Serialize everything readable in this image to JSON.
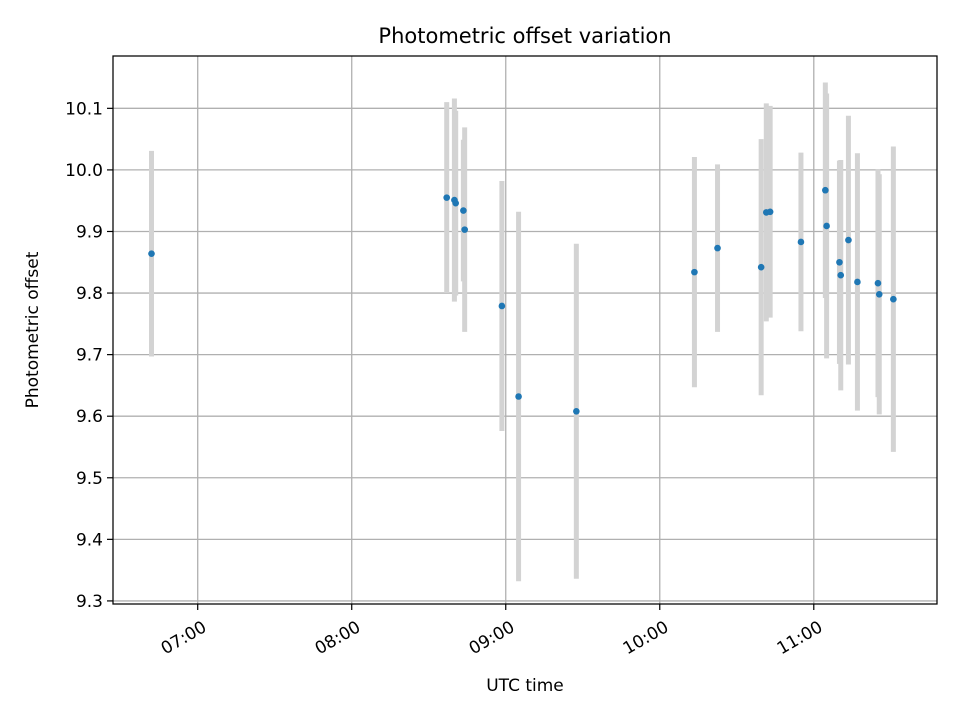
{
  "chart_data": {
    "type": "scatter",
    "title": "Photometric offset variation",
    "xlabel": "UTC time",
    "ylabel": "Photometric offset",
    "x_axis_type": "time",
    "xlim": [
      "06:27",
      "11:48"
    ],
    "ylim": [
      9.295,
      10.185
    ],
    "x_ticks": [
      "07:00",
      "08:00",
      "09:00",
      "10:00",
      "11:00"
    ],
    "y_ticks": [
      9.3,
      9.4,
      9.5,
      9.6,
      9.7,
      9.8,
      9.9,
      10.0,
      10.1
    ],
    "y_tick_labels": [
      "9.3",
      "9.4",
      "9.5",
      "9.6",
      "9.7",
      "9.8",
      "9.9",
      "10.0",
      "10.1"
    ],
    "grid": true,
    "x_tick_rotation_deg": 30,
    "colors": {
      "point": "#1f77b4",
      "errorbar": "#d3d3d3",
      "grid": "#b0b0b0"
    },
    "series": [
      {
        "points": [
          {
            "x": "06:42",
            "y": 9.864,
            "err": 0.167
          },
          {
            "x": "08:37",
            "y": 9.955,
            "err": 0.155
          },
          {
            "x": "08:40",
            "y": 9.951,
            "err": 0.165
          },
          {
            "x": "08:40.5",
            "y": 9.946,
            "err": 0.15
          },
          {
            "x": "08:43.5",
            "y": 9.934,
            "err": 0.115
          },
          {
            "x": "08:44",
            "y": 9.903,
            "err": 0.166
          },
          {
            "x": "08:58.5",
            "y": 9.779,
            "err": 0.203
          },
          {
            "x": "09:05",
            "y": 9.632,
            "err": 0.3
          },
          {
            "x": "09:27.5",
            "y": 9.608,
            "err": 0.272
          },
          {
            "x": "10:13.5",
            "y": 9.834,
            "err": 0.187
          },
          {
            "x": "10:22.5",
            "y": 9.873,
            "err": 0.136
          },
          {
            "x": "10:39.5",
            "y": 9.842,
            "err": 0.208
          },
          {
            "x": "10:41.5",
            "y": 9.931,
            "err": 0.177
          },
          {
            "x": "10:43",
            "y": 9.932,
            "err": 0.172
          },
          {
            "x": "10:55",
            "y": 9.883,
            "err": 0.145
          },
          {
            "x": "11:04.5",
            "y": 9.967,
            "err": 0.175
          },
          {
            "x": "11:05",
            "y": 9.909,
            "err": 0.215
          },
          {
            "x": "11:10",
            "y": 9.85,
            "err": 0.165
          },
          {
            "x": "11:10.5",
            "y": 9.829,
            "err": 0.187
          },
          {
            "x": "11:13.5",
            "y": 9.886,
            "err": 0.202
          },
          {
            "x": "11:17",
            "y": 9.818,
            "err": 0.209
          },
          {
            "x": "11:25",
            "y": 9.816,
            "err": 0.185
          },
          {
            "x": "11:25.5",
            "y": 9.798,
            "err": 0.195
          },
          {
            "x": "11:31",
            "y": 9.79,
            "err": 0.248
          }
        ]
      }
    ]
  }
}
